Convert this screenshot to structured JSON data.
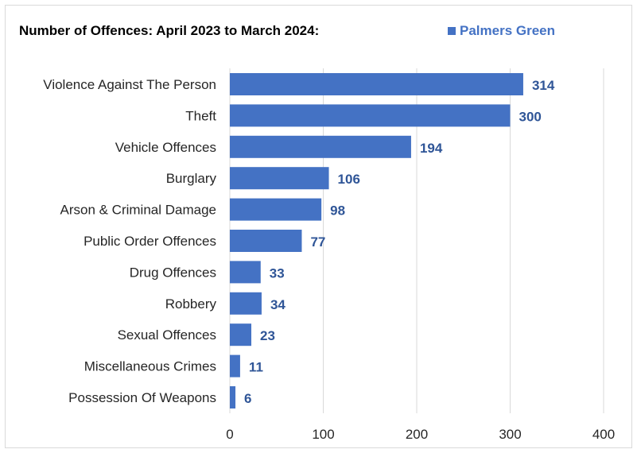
{
  "chart_data": {
    "type": "bar",
    "orientation": "horizontal",
    "title": "Number of Offences: April 2023 to March 2024:",
    "categories": [
      "Violence Against The Person",
      "Theft",
      "Vehicle Offences",
      "Burglary",
      "Arson & Criminal Damage",
      "Public Order Offences",
      "Drug Offences",
      "Robbery",
      "Sexual Offences",
      "Miscellaneous Crimes",
      "Possession Of Weapons"
    ],
    "series": [
      {
        "name": "Palmers Green",
        "values": [
          314,
          300,
          194,
          106,
          98,
          77,
          33,
          34,
          23,
          11,
          6
        ],
        "color": "#4472c4"
      }
    ],
    "xlim": [
      0,
      400
    ],
    "xticks": [
      "0",
      "100",
      "200",
      "300",
      "400"
    ],
    "grid": "vertical",
    "legend": "top-right",
    "data_labels": true
  }
}
